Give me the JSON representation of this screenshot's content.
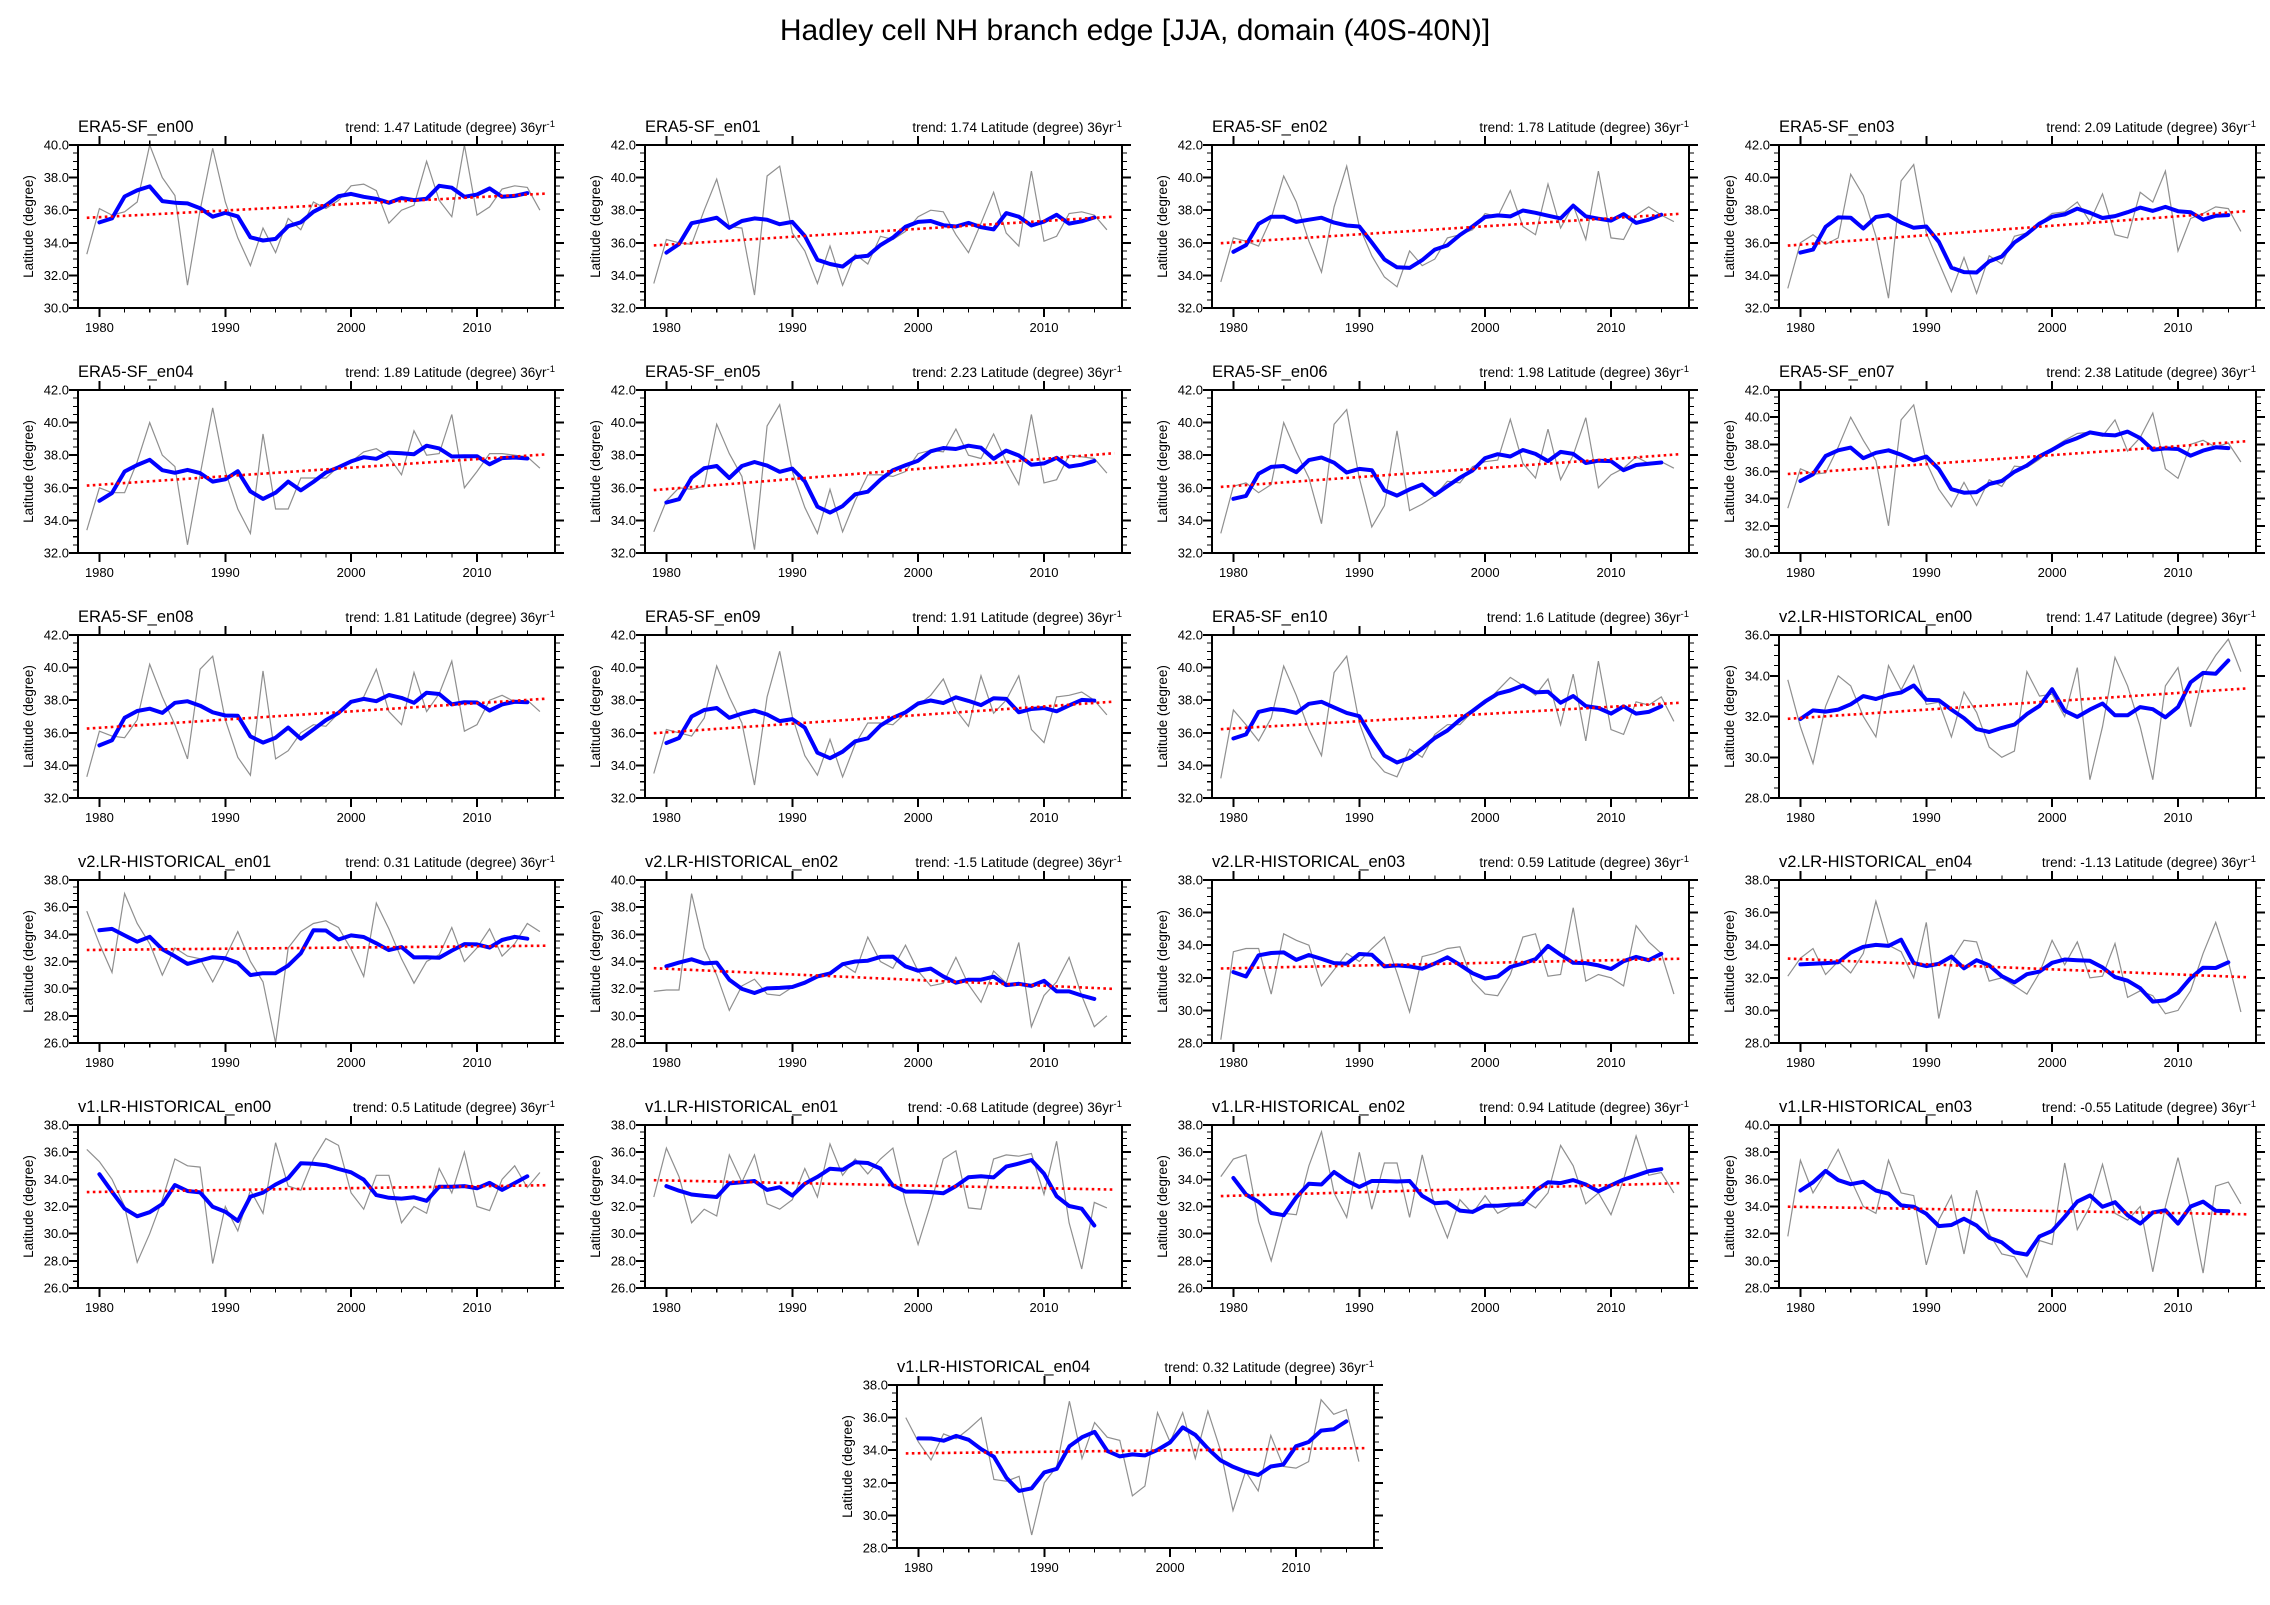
{
  "chart_data": {
    "type": "line",
    "title": "Hadley cell NH branch edge [JJA, domain (40S-40N)]",
    "ylabel": "Latitude (degree)",
    "x_ticks": [
      1980,
      1990,
      2000,
      2010
    ],
    "x_minor_step": 2,
    "years": {
      "start": 1979,
      "end": 2015
    },
    "trend_label": {
      "prefix": "trend:",
      "units": "Latitude (degree) 36yr",
      "exponent": "-1"
    },
    "colors": {
      "raw_series": "#8f8f8f",
      "smoothed_series": "#0000ff",
      "trend_line": "#ff0000",
      "axis": "#000000"
    },
    "smoothing_window": 5,
    "panels": [
      {
        "name": "ERA5-SF_en00",
        "trend": "1.47",
        "ylim": [
          30,
          40
        ],
        "ytick_step": 2,
        "annual": [
          33.3,
          36.1,
          35.7,
          35.9,
          36.5,
          40.0,
          38.0,
          36.9,
          31.4,
          36.0,
          39.8,
          36.5,
          34.3,
          32.6,
          34.9,
          33.4,
          35.5,
          34.8,
          36.5,
          36.1,
          36.6,
          37.5,
          37.6,
          37.2,
          35.2,
          36.0,
          36.3,
          39.0,
          36.6,
          35.6,
          40.0,
          35.7,
          36.2,
          37.3,
          37.5,
          37.4,
          36.0
        ]
      },
      {
        "name": "ERA5-SF_en01",
        "trend": "1.74",
        "ylim": [
          32,
          42
        ],
        "ytick_step": 2,
        "annual": [
          33.5,
          36.2,
          36.0,
          35.9,
          38.0,
          39.9,
          37.0,
          36.9,
          32.8,
          40.1,
          40.7,
          36.6,
          35.5,
          33.5,
          35.8,
          33.4,
          35.3,
          34.7,
          36.4,
          36.2,
          36.7,
          37.6,
          38.0,
          37.9,
          36.5,
          35.4,
          37.2,
          39.1,
          36.6,
          35.8,
          40.4,
          36.1,
          36.4,
          37.8,
          37.9,
          37.7,
          36.8
        ]
      },
      {
        "name": "ERA5-SF_en02",
        "trend": "1.78",
        "ylim": [
          32,
          42
        ],
        "ytick_step": 2,
        "annual": [
          33.6,
          36.3,
          36.1,
          35.8,
          37.5,
          40.1,
          38.5,
          36.1,
          34.2,
          38.2,
          40.7,
          37.0,
          35.2,
          33.9,
          33.3,
          35.5,
          34.6,
          35.0,
          36.3,
          36.5,
          36.8,
          37.8,
          37.6,
          39.2,
          37.0,
          36.5,
          39.6,
          36.9,
          38.3,
          36.2,
          40.4,
          36.3,
          36.2,
          37.7,
          38.2,
          37.7,
          37.3
        ]
      },
      {
        "name": "ERA5-SF_en03",
        "trend": "2.09",
        "ylim": [
          32,
          42
        ],
        "ytick_step": 2,
        "annual": [
          33.2,
          36.0,
          36.5,
          35.9,
          36.3,
          40.2,
          38.9,
          36.4,
          32.6,
          39.8,
          40.8,
          36.6,
          34.8,
          33.0,
          35.1,
          32.9,
          35.2,
          34.7,
          36.4,
          36.6,
          37.2,
          37.8,
          37.9,
          38.5,
          37.3,
          39.0,
          36.5,
          36.3,
          39.1,
          38.5,
          40.4,
          35.5,
          37.5,
          37.8,
          38.2,
          38.1,
          36.7
        ]
      },
      {
        "name": "ERA5-SF_en04",
        "trend": "1.89",
        "ylim": [
          32,
          42
        ],
        "ytick_step": 2,
        "annual": [
          33.4,
          36.0,
          35.7,
          35.7,
          37.6,
          40.0,
          38.0,
          37.3,
          32.5,
          36.8,
          40.9,
          37.0,
          34.7,
          33.2,
          39.3,
          34.7,
          34.7,
          36.6,
          36.6,
          36.6,
          37.3,
          37.6,
          38.2,
          38.4,
          37.9,
          36.8,
          39.5,
          38.0,
          38.1,
          40.5,
          36.0,
          37.0,
          38.1,
          38.1,
          38.0,
          37.9,
          37.2
        ]
      },
      {
        "name": "ERA5-SF_en05",
        "trend": "2.23",
        "ylim": [
          32,
          42
        ],
        "ytick_step": 2,
        "annual": [
          33.3,
          35.2,
          36.0,
          35.9,
          36.1,
          39.9,
          38.1,
          36.7,
          32.2,
          39.8,
          41.1,
          37.0,
          34.8,
          33.2,
          35.9,
          33.3,
          35.2,
          36.8,
          36.8,
          36.7,
          37.0,
          38.1,
          38.3,
          38.2,
          39.6,
          38.0,
          37.8,
          39.3,
          37.6,
          36.2,
          40.5,
          36.3,
          36.5,
          38.0,
          37.9,
          37.8,
          36.9
        ]
      },
      {
        "name": "ERA5-SF_en06",
        "trend": "1.98",
        "ylim": [
          32,
          42
        ],
        "ytick_step": 2,
        "annual": [
          33.2,
          36.1,
          36.3,
          35.7,
          36.2,
          40.0,
          38.2,
          36.6,
          33.8,
          39.9,
          40.8,
          36.6,
          33.6,
          34.9,
          39.5,
          34.6,
          35.0,
          35.5,
          36.4,
          36.3,
          37.3,
          37.6,
          37.7,
          40.2,
          37.5,
          36.6,
          39.6,
          36.5,
          38.0,
          40.3,
          36.0,
          36.8,
          37.2,
          37.9,
          37.5,
          37.6,
          37.2
        ]
      },
      {
        "name": "ERA5-SF_en07",
        "trend": "2.38",
        "ylim": [
          30,
          42
        ],
        "ytick_step": 2,
        "annual": [
          33.3,
          36.2,
          35.8,
          35.9,
          37.8,
          40.0,
          38.3,
          36.8,
          32.0,
          39.8,
          40.9,
          36.7,
          34.7,
          33.4,
          35.2,
          33.5,
          35.4,
          34.9,
          36.4,
          36.3,
          36.9,
          37.7,
          38.3,
          38.8,
          38.9,
          38.6,
          39.8,
          37.5,
          38.5,
          40.3,
          36.2,
          35.5,
          38.0,
          38.3,
          37.8,
          38.1,
          36.7
        ]
      },
      {
        "name": "ERA5-SF_en08",
        "trend": "1.81",
        "ylim": [
          32,
          42
        ],
        "ytick_step": 2,
        "annual": [
          33.3,
          36.1,
          35.8,
          35.7,
          36.8,
          40.2,
          38.2,
          36.5,
          34.4,
          39.9,
          40.7,
          36.8,
          34.5,
          33.4,
          39.8,
          34.4,
          34.9,
          36.0,
          36.5,
          36.4,
          37.2,
          37.8,
          38.2,
          39.9,
          37.3,
          36.5,
          39.7,
          37.3,
          38.4,
          40.4,
          36.1,
          36.5,
          38.0,
          38.3,
          37.9,
          38.0,
          37.3
        ]
      },
      {
        "name": "ERA5-SF_en09",
        "trend": "1.91",
        "ylim": [
          32,
          42
        ],
        "ytick_step": 2,
        "annual": [
          33.5,
          36.2,
          36.0,
          35.8,
          36.9,
          40.1,
          38.2,
          36.6,
          32.8,
          38.2,
          41.0,
          37.0,
          34.6,
          33.4,
          35.6,
          33.3,
          35.3,
          36.6,
          36.6,
          36.5,
          37.2,
          37.7,
          38.3,
          39.3,
          37.4,
          36.4,
          39.5,
          37.2,
          38.0,
          39.5,
          36.2,
          35.4,
          38.2,
          38.3,
          38.5,
          38.0,
          37.1
        ]
      },
      {
        "name": "ERA5-SF_en10",
        "trend": "1.6",
        "ylim": [
          32,
          42
        ],
        "ytick_step": 2,
        "annual": [
          33.2,
          37.4,
          36.5,
          35.5,
          36.9,
          40.1,
          38.3,
          36.2,
          34.6,
          39.7,
          40.7,
          36.6,
          34.5,
          33.6,
          33.3,
          35.0,
          34.5,
          35.9,
          36.5,
          36.5,
          37.3,
          37.8,
          38.6,
          39.4,
          38.9,
          38.3,
          39.3,
          36.5,
          39.6,
          35.5,
          40.4,
          36.2,
          35.9,
          37.9,
          37.7,
          38.2,
          36.7
        ]
      },
      {
        "name": "v2.LR-HISTORICAL_en00",
        "trend": "1.47",
        "ylim": [
          28,
          36
        ],
        "ytick_step": 2,
        "annual": [
          33.8,
          31.5,
          29.7,
          32.5,
          34.0,
          33.5,
          32.0,
          31.0,
          34.5,
          33.3,
          34.5,
          32.6,
          32.7,
          31.0,
          33.2,
          32.2,
          30.5,
          30.0,
          30.3,
          34.2,
          33.0,
          33.1,
          32.0,
          34.4,
          28.9,
          31.5,
          34.9,
          33.5,
          31.5,
          28.9,
          33.5,
          34.4,
          31.5,
          34.0,
          35.0,
          35.8,
          34.2
        ]
      },
      {
        "name": "v2.LR-HISTORICAL_en01",
        "trend": "0.31",
        "ylim": [
          26,
          38
        ],
        "ytick_step": 2,
        "annual": [
          35.7,
          33.3,
          31.2,
          37.0,
          34.8,
          33.3,
          31.0,
          33.0,
          32.4,
          32.2,
          30.5,
          32.3,
          34.2,
          32.0,
          30.5,
          26.0,
          33.0,
          34.2,
          34.8,
          35.0,
          34.5,
          32.9,
          30.9,
          36.3,
          34.4,
          32.2,
          30.4,
          32.0,
          32.5,
          34.5,
          32.0,
          33.0,
          34.4,
          32.4,
          33.3,
          34.8,
          34.2
        ]
      },
      {
        "name": "v2.LR-HISTORICAL_en02",
        "trend": "-1.5",
        "ylim": [
          28,
          40
        ],
        "ytick_step": 2,
        "annual": [
          31.8,
          31.9,
          31.9,
          39.0,
          35.0,
          33.0,
          30.4,
          32.2,
          32.7,
          31.6,
          31.5,
          32.1,
          32.4,
          33.0,
          33.2,
          33.8,
          33.2,
          35.8,
          34.0,
          33.5,
          35.2,
          33.3,
          32.2,
          32.4,
          34.3,
          32.3,
          31.0,
          33.3,
          32.4,
          35.4,
          29.2,
          31.5,
          32.5,
          34.3,
          31.5,
          29.2,
          30.0
        ]
      },
      {
        "name": "v2.LR-HISTORICAL_en03",
        "trend": "0.59",
        "ylim": [
          28,
          38
        ],
        "ytick_step": 2,
        "annual": [
          28.2,
          33.6,
          33.8,
          33.8,
          31.0,
          34.7,
          34.3,
          34.0,
          31.5,
          32.5,
          33.5,
          33.0,
          33.8,
          34.5,
          32.3,
          29.9,
          33.3,
          33.5,
          33.8,
          33.9,
          31.8,
          31.0,
          30.9,
          32.2,
          34.5,
          34.7,
          32.1,
          32.2,
          36.3,
          31.8,
          32.2,
          32.0,
          31.5,
          35.2,
          34.2,
          33.5,
          31.0
        ]
      },
      {
        "name": "v2.LR-HISTORICAL_en04",
        "trend": "-1.13",
        "ylim": [
          28,
          38
        ],
        "ytick_step": 2,
        "annual": [
          32.1,
          33.2,
          33.8,
          32.2,
          33.0,
          32.3,
          33.5,
          36.7,
          34.0,
          33.6,
          32.0,
          35.4,
          29.5,
          33.1,
          34.3,
          34.2,
          31.8,
          32.0,
          31.5,
          31.0,
          32.3,
          34.3,
          32.8,
          34.2,
          32.0,
          32.1,
          34.1,
          30.8,
          31.2,
          30.9,
          29.8,
          30.0,
          31.2,
          33.5,
          35.4,
          33.0,
          29.9
        ]
      },
      {
        "name": "v1.LR-HISTORICAL_en00",
        "trend": "0.5",
        "ylim": [
          26,
          38
        ],
        "ytick_step": 2,
        "annual": [
          36.2,
          35.3,
          34.0,
          32.0,
          27.9,
          30.0,
          32.5,
          35.5,
          35.0,
          34.9,
          27.8,
          32.0,
          30.2,
          33.2,
          31.5,
          36.7,
          33.5,
          33.2,
          35.5,
          37.0,
          36.5,
          33.0,
          31.8,
          34.3,
          34.3,
          30.8,
          32.0,
          31.5,
          34.8,
          33.0,
          36.0,
          32.0,
          31.7,
          34.0,
          35.0,
          33.4,
          34.5
        ]
      },
      {
        "name": "v1.LR-HISTORICAL_en01",
        "trend": "-0.68",
        "ylim": [
          26,
          38
        ],
        "ytick_step": 2,
        "annual": [
          32.7,
          36.3,
          34.2,
          30.8,
          31.8,
          31.3,
          35.8,
          33.8,
          35.8,
          32.2,
          31.8,
          32.5,
          34.8,
          32.7,
          36.6,
          34.3,
          35.5,
          34.4,
          35.5,
          36.3,
          32.3,
          29.2,
          32.2,
          35.5,
          36.1,
          31.9,
          31.8,
          35.5,
          35.8,
          35.7,
          35.9,
          32.9,
          36.8,
          30.8,
          27.4,
          32.3,
          31.9
        ]
      },
      {
        "name": "v1.LR-HISTORICAL_en02",
        "trend": "0.94",
        "ylim": [
          26,
          38
        ],
        "ytick_step": 2,
        "annual": [
          34.2,
          35.5,
          35.8,
          30.9,
          28.0,
          31.5,
          31.4,
          35.0,
          37.5,
          33.0,
          31.2,
          36.0,
          31.8,
          35.2,
          35.2,
          31.2,
          35.8,
          32.0,
          29.7,
          32.5,
          31.5,
          32.8,
          31.5,
          32.0,
          32.5,
          31.9,
          33.0,
          36.5,
          35.0,
          32.2,
          33.0,
          31.4,
          34.0,
          37.2,
          34.3,
          34.5,
          33.0
        ]
      },
      {
        "name": "v1.LR-HISTORICAL_en03",
        "trend": "-0.55",
        "ylim": [
          28,
          40
        ],
        "ytick_step": 2,
        "annual": [
          31.8,
          37.4,
          35.0,
          36.5,
          38.2,
          36.0,
          34.0,
          33.5,
          37.4,
          35.0,
          34.8,
          29.7,
          33.0,
          34.8,
          30.5,
          35.2,
          32.0,
          30.5,
          30.3,
          28.8,
          31.5,
          31.2,
          37.2,
          32.3,
          34.0,
          37.1,
          33.5,
          33.0,
          34.0,
          29.2,
          34.0,
          37.6,
          33.8,
          29.1,
          35.5,
          35.8,
          34.2
        ]
      },
      {
        "name": "v1.LR-HISTORICAL_en04",
        "trend": "0.32",
        "ylim": [
          28,
          38
        ],
        "ytick_step": 2,
        "annual": [
          36.0,
          34.5,
          33.4,
          35.0,
          34.7,
          35.3,
          36.0,
          32.2,
          32.1,
          32.4,
          28.8,
          32.0,
          33.0,
          37.0,
          33.5,
          35.7,
          34.8,
          34.6,
          31.2,
          31.8,
          36.3,
          34.5,
          36.3,
          33.5,
          36.4,
          34.0,
          30.3,
          32.7,
          31.5,
          34.9,
          33.0,
          32.9,
          33.3,
          37.1,
          36.2,
          36.5,
          33.3
        ]
      }
    ]
  }
}
